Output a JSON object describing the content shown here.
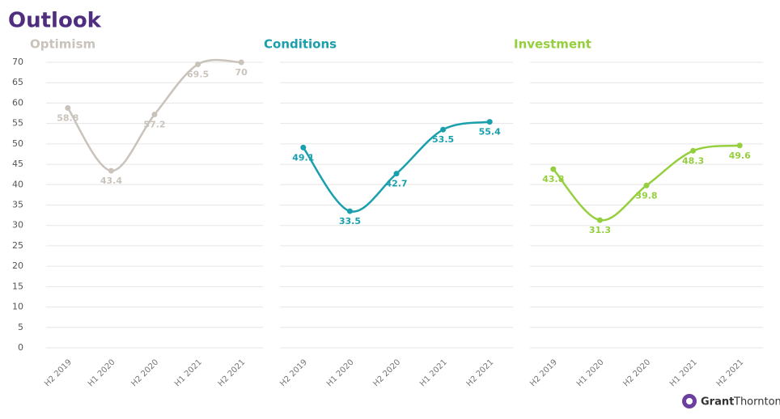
{
  "title": "Outlook",
  "logo": {
    "bold": "Grant",
    "light": "Thornton"
  },
  "chart_data": [
    {
      "type": "line",
      "title": "Optimism",
      "categories": [
        "H2 2019",
        "H1 2020",
        "H2 2020",
        "H1 2021",
        "H2 2021"
      ],
      "series": [
        {
          "name": "Optimism",
          "color": "#c9c3bc",
          "values": [
            58.8,
            43.4,
            57.2,
            69.5,
            70
          ]
        }
      ],
      "ylim": [
        0,
        70
      ],
      "yticks": [
        0,
        5,
        10,
        15,
        20,
        25,
        30,
        35,
        40,
        45,
        50,
        55,
        60,
        65,
        70
      ],
      "grid": true
    },
    {
      "type": "line",
      "title": "Conditions",
      "categories": [
        "H2 2019",
        "H1 2020",
        "H2 2020",
        "H1 2021",
        "H2 2021"
      ],
      "series": [
        {
          "name": "Conditions",
          "color": "#1a9fad",
          "values": [
            49.1,
            33.5,
            42.7,
            53.5,
            55.4
          ]
        }
      ],
      "ylim": [
        0,
        70
      ],
      "yticks": [
        0,
        5,
        10,
        15,
        20,
        25,
        30,
        35,
        40,
        45,
        50,
        55,
        60,
        65,
        70
      ],
      "grid": true
    },
    {
      "type": "line",
      "title": "Investment",
      "categories": [
        "H2 2019",
        "H1 2020",
        "H2 2020",
        "H1 2021",
        "H2 2021"
      ],
      "series": [
        {
          "name": "Investment",
          "color": "#96cf3e",
          "values": [
            43.8,
            31.3,
            39.8,
            48.3,
            49.6
          ]
        }
      ],
      "ylim": [
        0,
        70
      ],
      "yticks": [
        0,
        5,
        10,
        15,
        20,
        25,
        30,
        35,
        40,
        45,
        50,
        55,
        60,
        65,
        70
      ],
      "grid": true
    }
  ]
}
